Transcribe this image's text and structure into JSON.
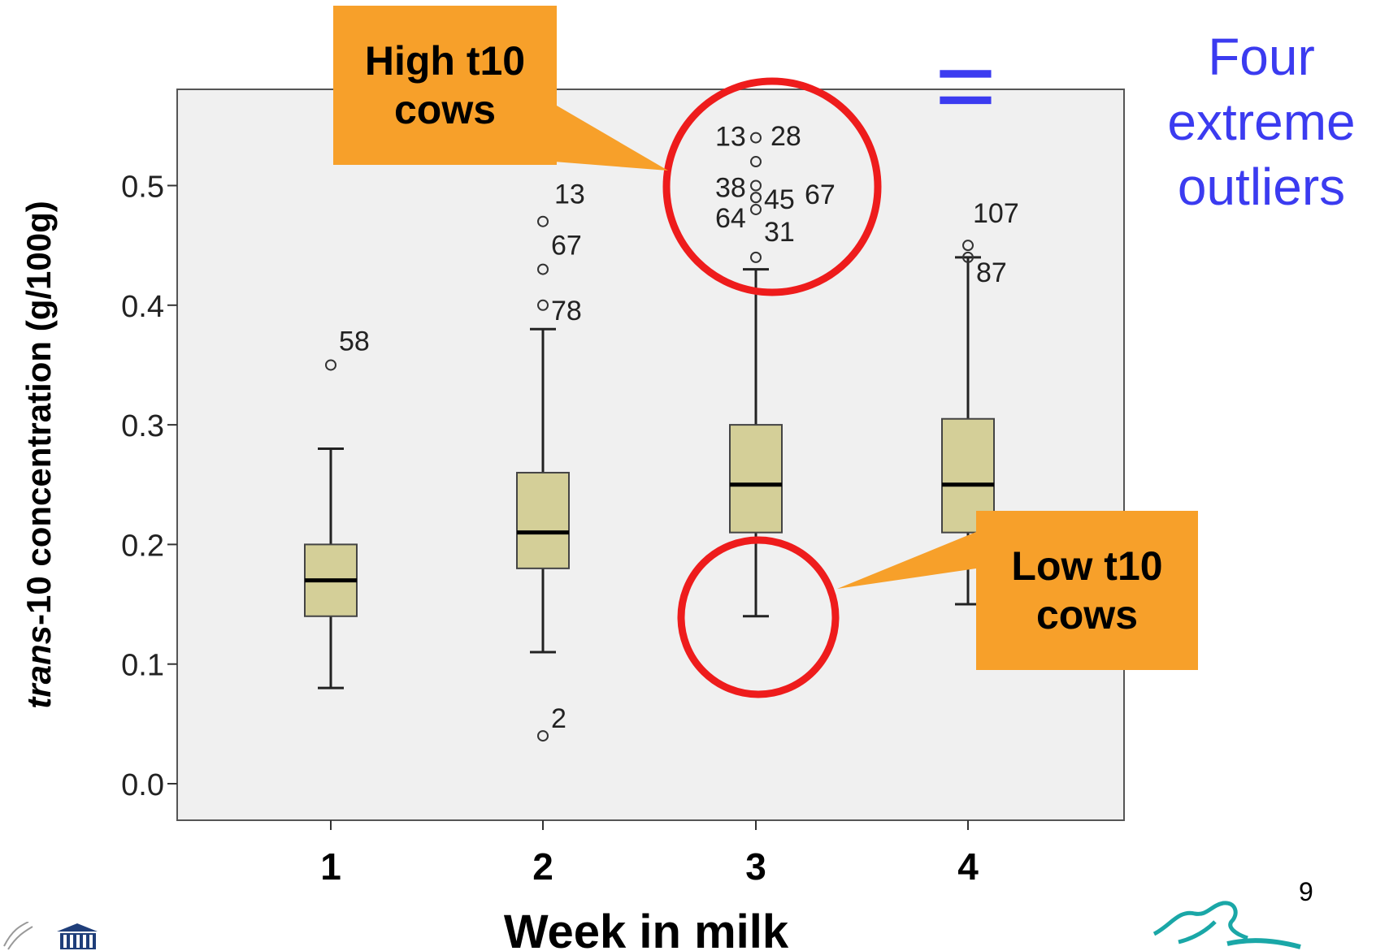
{
  "slide": {
    "callout_high": [
      "High t10",
      "cows"
    ],
    "callout_low": [
      "Low t10",
      "cows"
    ],
    "side_note": [
      "Four",
      "extreme",
      "outliers"
    ],
    "equals_sign": "=",
    "page_number": "9"
  },
  "colors": {
    "plot_background": "#f0f0f0",
    "box_fill": "#d4cf98",
    "callout": "#f7a02a",
    "circle": "#ee1c1c",
    "side_note": "#3b3bf0"
  },
  "chart_data": {
    "type": "box",
    "title": "",
    "xlabel": "Week in milk",
    "ylabel_italic": "trans",
    "ylabel_rest": "-10 concentration (g/100g)",
    "ylim": [
      -0.03,
      0.58
    ],
    "yticks": [
      0.0,
      0.1,
      0.2,
      0.3,
      0.4,
      0.5
    ],
    "ytick_labels": [
      "0.0",
      "0.1",
      "0.2",
      "0.3",
      "0.4",
      "0.5"
    ],
    "categories": [
      "1",
      "2",
      "3",
      "4"
    ],
    "boxes": [
      {
        "category": "1",
        "whisker_low": 0.08,
        "q1": 0.14,
        "median": 0.17,
        "q3": 0.2,
        "whisker_high": 0.28,
        "outliers": [
          {
            "value": 0.35,
            "label": "58"
          }
        ]
      },
      {
        "category": "2",
        "whisker_low": 0.11,
        "q1": 0.18,
        "median": 0.21,
        "q3": 0.26,
        "whisker_high": 0.38,
        "outliers": [
          {
            "value": 0.47,
            "label": "13"
          },
          {
            "value": 0.43,
            "label": "67"
          },
          {
            "value": 0.4,
            "label": "78"
          },
          {
            "value": 0.04,
            "label": "2"
          }
        ]
      },
      {
        "category": "3",
        "whisker_low": 0.14,
        "q1": 0.21,
        "median": 0.25,
        "q3": 0.3,
        "whisker_high": 0.43,
        "outliers": [
          {
            "value": 0.54,
            "label": "13"
          },
          {
            "value": 0.52,
            "label": "28"
          },
          {
            "value": 0.5,
            "label": "38"
          },
          {
            "value": 0.49,
            "label": "45"
          },
          {
            "value": 0.49,
            "label": "67"
          },
          {
            "value": 0.48,
            "label": "64"
          },
          {
            "value": 0.44,
            "label": "31"
          }
        ]
      },
      {
        "category": "4",
        "whisker_low": 0.15,
        "q1": 0.21,
        "median": 0.25,
        "q3": 0.305,
        "whisker_high": 0.44,
        "outliers": [
          {
            "value": 0.45,
            "label": "107"
          },
          {
            "value": 0.44,
            "label": "87"
          }
        ]
      }
    ],
    "grid": false,
    "legend": "none"
  }
}
